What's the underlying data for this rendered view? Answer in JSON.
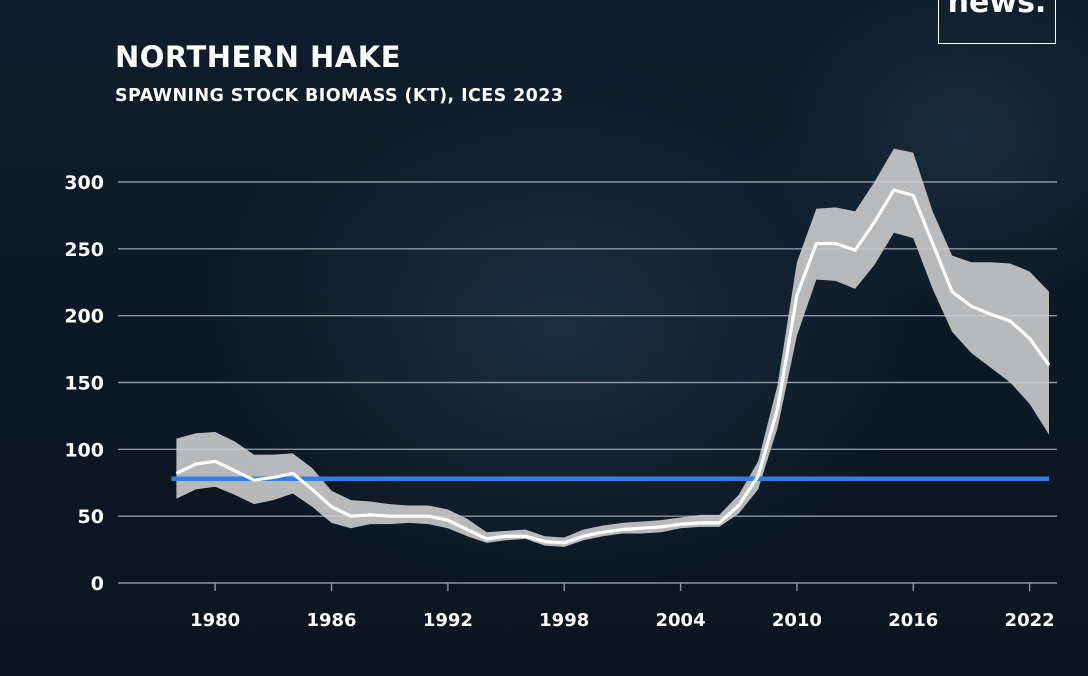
{
  "brand": {
    "logo_text": "news."
  },
  "colors": {
    "background": "#0e1a28",
    "band": "#cfcfcf",
    "line": "#ffffff",
    "reference": "#2f7fe6",
    "grid": "#8c96a2"
  },
  "chart_data": {
    "type": "line",
    "title": "NORTHERN HAKE",
    "subtitle": "SPAWNING STOCK BIOMASS (KT), ICES 2023",
    "xlabel": "",
    "ylabel": "",
    "xlim": [
      1977,
      2023
    ],
    "ylim": [
      0,
      300
    ],
    "y_ticks": [
      0,
      50,
      100,
      150,
      200,
      250,
      300
    ],
    "x_ticks": [
      1980,
      1986,
      1992,
      1998,
      2004,
      2010,
      2016,
      2022
    ],
    "grid": true,
    "legend": "none",
    "reference_line": {
      "y": 78,
      "from": 1978,
      "to": 2023
    },
    "x": [
      1978,
      1979,
      1980,
      1981,
      1982,
      1983,
      1984,
      1985,
      1986,
      1987,
      1988,
      1989,
      1990,
      1991,
      1992,
      1993,
      1994,
      1995,
      1996,
      1997,
      1998,
      1999,
      2000,
      2001,
      2002,
      2003,
      2004,
      2005,
      2006,
      2007,
      2008,
      2009,
      2010,
      2011,
      2012,
      2013,
      2014,
      2015,
      2016,
      2017,
      2018,
      2019,
      2020,
      2021,
      2022,
      2023
    ],
    "series": [
      {
        "values": [
          82,
          89,
          91,
          84,
          77,
          79,
          82,
          70,
          57,
          50,
          51,
          50,
          50,
          50,
          47,
          40,
          33,
          35,
          35,
          31,
          30,
          35,
          38,
          40,
          41,
          42,
          44,
          45,
          45,
          58,
          80,
          130,
          215,
          254,
          254,
          249,
          270,
          294,
          290,
          254,
          218,
          207,
          201,
          196,
          183,
          163
        ]
      }
    ],
    "band": {
      "lower": [
        63,
        70,
        72,
        66,
        59,
        62,
        67,
        57,
        45,
        41,
        44,
        44,
        45,
        44,
        41,
        35,
        30,
        32,
        33,
        28,
        27,
        32,
        35,
        37,
        37,
        38,
        41,
        42,
        42,
        52,
        70,
        116,
        185,
        227,
        226,
        220,
        238,
        262,
        258,
        220,
        188,
        172,
        161,
        150,
        134,
        111
      ],
      "upper": [
        108,
        112,
        113,
        106,
        96,
        96,
        97,
        86,
        69,
        62,
        61,
        59,
        58,
        58,
        55,
        48,
        38,
        39,
        40,
        35,
        34,
        40,
        43,
        45,
        46,
        47,
        49,
        51,
        51,
        66,
        91,
        148,
        240,
        280,
        281,
        278,
        300,
        325,
        322,
        278,
        245,
        240,
        240,
        239,
        233,
        218
      ]
    }
  }
}
